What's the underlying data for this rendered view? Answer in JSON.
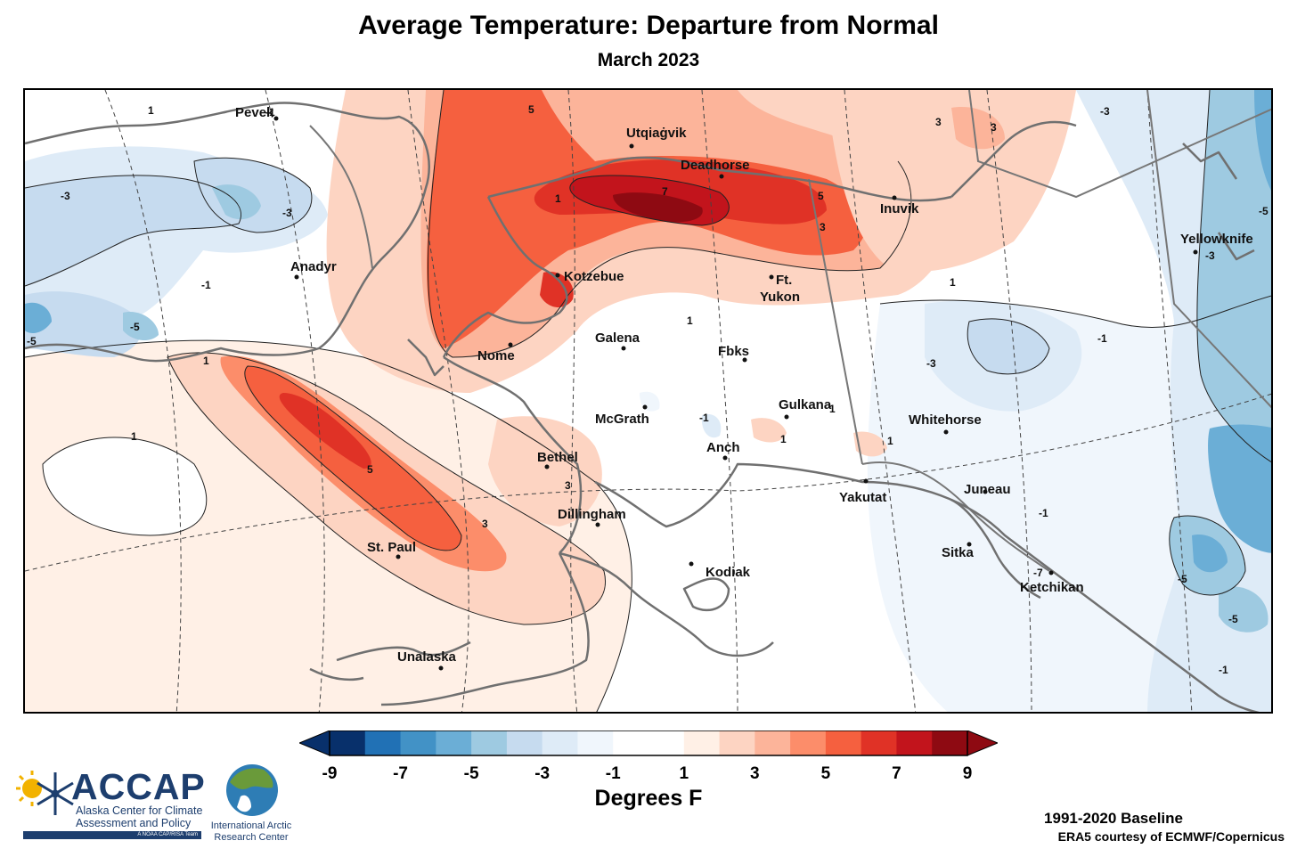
{
  "title": "Average Temperature: Departure from Normal",
  "subtitle": "March 2023",
  "colorbar": {
    "ticks": [
      "-9",
      "-7",
      "-5",
      "-3",
      "-1",
      "1",
      "3",
      "5",
      "7",
      "9"
    ],
    "colors": [
      "#08306b",
      "#2171b5",
      "#4292c6",
      "#6baed6",
      "#9ecae1",
      "#c6dbef",
      "#deebf7",
      "#f0f6fc",
      "#ffffff",
      "#ffffff",
      "#fff0e6",
      "#fdd4c2",
      "#fcb49a",
      "#fc8d6a",
      "#f5603f",
      "#e03226",
      "#c2141c",
      "#8e0a12"
    ],
    "units": "Degrees F"
  },
  "cities": [
    {
      "name": "Pevek"
    },
    {
      "name": "Utqiaġvik"
    },
    {
      "name": "Deadhorse"
    },
    {
      "name": "Inuvik"
    },
    {
      "name": "Anadyr"
    },
    {
      "name": "Kotzebue"
    },
    {
      "name": "Ft."
    },
    {
      "name": "Yukon"
    },
    {
      "name": "Yellowknife"
    },
    {
      "name": "Galena"
    },
    {
      "name": "Nome"
    },
    {
      "name": "Fbks"
    },
    {
      "name": "Gulkana"
    },
    {
      "name": "McGrath"
    },
    {
      "name": "Whitehorse"
    },
    {
      "name": "Bethel"
    },
    {
      "name": "Anch"
    },
    {
      "name": "Yakutat"
    },
    {
      "name": "Juneau"
    },
    {
      "name": "Dillingham"
    },
    {
      "name": "St. Paul"
    },
    {
      "name": "Sitka"
    },
    {
      "name": "Kodiak"
    },
    {
      "name": "Ketchikan"
    },
    {
      "name": "Unalaska"
    }
  ],
  "contour_labels": [
    "1",
    "-1",
    "-3",
    "5",
    "3",
    "-3",
    "-1",
    "-5",
    "-5",
    "7",
    "5",
    "3",
    "3",
    "1",
    "1",
    "1",
    "1",
    "1",
    "-3",
    "-1",
    "3",
    "1",
    "5",
    "3",
    "-1",
    "-7",
    "-5",
    "-5",
    "-1",
    "-3",
    "-5",
    "-3",
    "1",
    "1",
    "-1"
  ],
  "branding": {
    "accap_name": "ACCAP",
    "accap_full": "Alaska Center for Climate Assessment and Policy",
    "accap_tag": "A NOAA CAP/RISA Team",
    "iarc_name": "International Arctic Research Center"
  },
  "baseline": "1991-2020 Baseline",
  "credit": "ERA5 courtesy of ECMWF/Copernicus"
}
